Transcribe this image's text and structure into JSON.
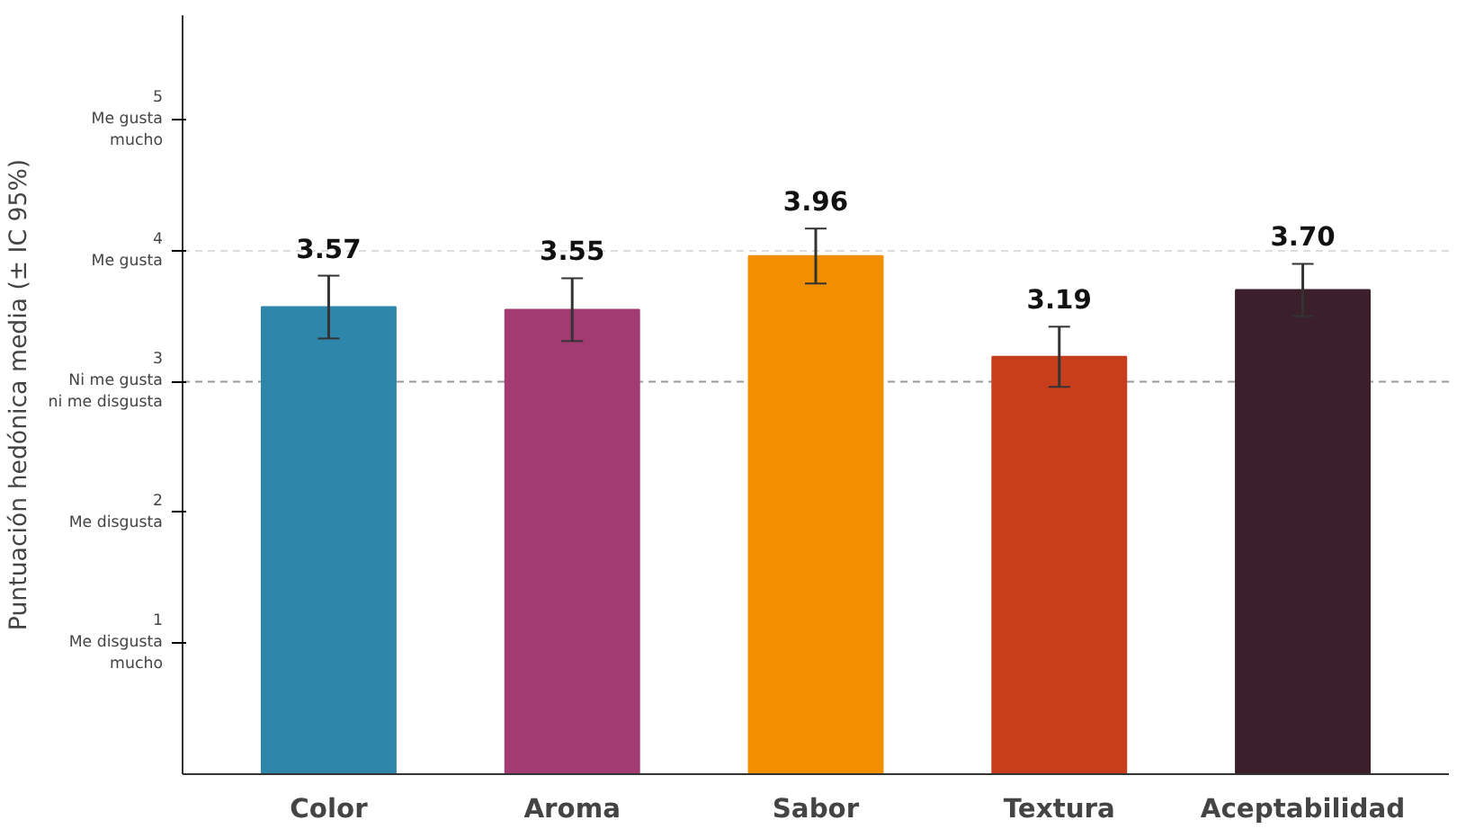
{
  "chart_data": {
    "type": "bar",
    "categories": [
      "Color",
      "Aroma",
      "Sabor",
      "Textura",
      "Aceptabilidad"
    ],
    "values": [
      3.57,
      3.55,
      3.96,
      3.19,
      3.7
    ],
    "colors": [
      "#2e86ab",
      "#a23b72",
      "#f18f01",
      "#c73e1d",
      "#3b1f2b"
    ],
    "errors": [
      0.24,
      0.24,
      0.21,
      0.23,
      0.2
    ],
    "value_labels": [
      "3.57",
      "3.55",
      "3.96",
      "3.19",
      "3.70"
    ],
    "ylabel": "Puntuación hedónica media (± IC 95%)",
    "ylim": [
      0,
      5.8
    ],
    "yticks": [
      {
        "value": 1,
        "label": "1\nMe disgusta\nmucho"
      },
      {
        "value": 2,
        "label": "2\nMe disgusta"
      },
      {
        "value": 3,
        "label": "3\nNi me gusta\nni me disgusta"
      },
      {
        "value": 4,
        "label": "4\nMe gusta"
      },
      {
        "value": 5,
        "label": "5\nMe gusta\nmucho"
      }
    ],
    "ref_lines": [
      {
        "axis": "y",
        "value": 3,
        "label": null,
        "color": "#999999",
        "line_style": "dashed"
      },
      {
        "axis": "y",
        "value": 4,
        "label": null,
        "color": "#dddddd",
        "line_style": "dashed"
      }
    ],
    "grid": false
  }
}
